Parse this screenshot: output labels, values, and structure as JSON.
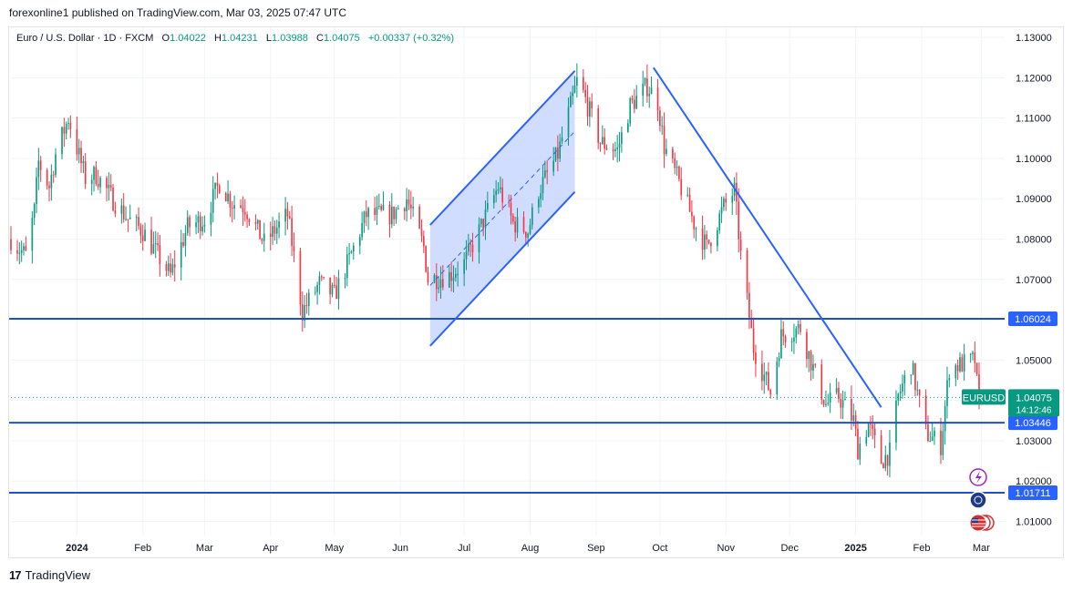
{
  "header": {
    "text": "forexonline1 published on TradingView.com, Mar 03, 2025 07:47 UTC"
  },
  "legend": {
    "symbol": "Euro / U.S. Dollar · 1D · FXCM",
    "open_label": "O",
    "open": "1.04022",
    "high_label": "H",
    "high": "1.04231",
    "low_label": "L",
    "low": "1.03988",
    "close_label": "C",
    "close": "1.04075",
    "change": "+0.00337 (+0.32%)"
  },
  "footer": {
    "brand": "TradingView",
    "logo": "tradingview-logo-icon"
  },
  "colors": {
    "up": "#089981",
    "down": "#f23645",
    "drawing": "#2962ff",
    "hline": "#1e50c8",
    "channel_fill": "#c9d7ff",
    "price_tag": "#2962ff",
    "grid": "#f0f3fa"
  },
  "chart_data": {
    "type": "candlestick",
    "symbol": "EURUSD",
    "interval": "1D",
    "grid": true,
    "y_axis": {
      "side": "right",
      "ticks": [
        "1.13000",
        "1.12000",
        "1.11000",
        "1.10000",
        "1.09000",
        "1.08000",
        "1.07000",
        "1.06000",
        "1.05000",
        "1.04000",
        "1.03000",
        "1.02000",
        "1.01000"
      ],
      "range": [
        1.0065,
        1.1325
      ]
    },
    "x_axis": {
      "range": [
        "2023-12-01",
        "2025-03-12"
      ],
      "ticks": [
        {
          "label": "2024",
          "date": "2024-01-01",
          "bold": true
        },
        {
          "label": "Feb",
          "date": "2024-02-01"
        },
        {
          "label": "Mar",
          "date": "2024-03-01"
        },
        {
          "label": "Apr",
          "date": "2024-04-01"
        },
        {
          "label": "May",
          "date": "2024-05-01"
        },
        {
          "label": "Jun",
          "date": "2024-06-01"
        },
        {
          "label": "Jul",
          "date": "2024-07-01"
        },
        {
          "label": "Aug",
          "date": "2024-08-01"
        },
        {
          "label": "Sep",
          "date": "2024-09-01"
        },
        {
          "label": "Oct",
          "date": "2024-10-01"
        },
        {
          "label": "Nov",
          "date": "2024-11-01"
        },
        {
          "label": "Dec",
          "date": "2024-12-01"
        },
        {
          "label": "2025",
          "date": "2025-01-01",
          "bold": true
        },
        {
          "label": "Feb",
          "date": "2025-02-01"
        },
        {
          "label": "Mar",
          "date": "2025-03-01"
        }
      ]
    },
    "price_path": [
      [
        "2023-12-01",
        1.08
      ],
      [
        "2023-12-04",
        1.078
      ],
      [
        "2023-12-08",
        1.076
      ],
      [
        "2023-12-12",
        1.087
      ],
      [
        "2023-12-14",
        1.099
      ],
      [
        "2023-12-19",
        1.093
      ],
      [
        "2023-12-22",
        1.101
      ],
      [
        "2023-12-28",
        1.11
      ],
      [
        "2024-01-05",
        1.095
      ],
      [
        "2024-01-10",
        1.096
      ],
      [
        "2024-01-19",
        1.089
      ],
      [
        "2024-01-25",
        1.085
      ],
      [
        "2024-02-01",
        1.082
      ],
      [
        "2024-02-08",
        1.076
      ],
      [
        "2024-02-14",
        1.071
      ],
      [
        "2024-02-22",
        1.083
      ],
      [
        "2024-03-01",
        1.085
      ],
      [
        "2024-03-08",
        1.094
      ],
      [
        "2024-03-14",
        1.089
      ],
      [
        "2024-03-20",
        1.088
      ],
      [
        "2024-03-29",
        1.079
      ],
      [
        "2024-04-09",
        1.086
      ],
      [
        "2024-04-16",
        1.062
      ],
      [
        "2024-04-24",
        1.069
      ],
      [
        "2024-05-01",
        1.066
      ],
      [
        "2024-05-08",
        1.075
      ],
      [
        "2024-05-16",
        1.086
      ],
      [
        "2024-05-28",
        1.086
      ],
      [
        "2024-06-04",
        1.09
      ],
      [
        "2024-06-12",
        1.078
      ],
      [
        "2024-06-14",
        1.07
      ],
      [
        "2024-06-24",
        1.071
      ],
      [
        "2024-07-01",
        1.074
      ],
      [
        "2024-07-08",
        1.082
      ],
      [
        "2024-07-17",
        1.093
      ],
      [
        "2024-07-24",
        1.084
      ],
      [
        "2024-07-31",
        1.082
      ],
      [
        "2024-08-05",
        1.092
      ],
      [
        "2024-08-14",
        1.101
      ],
      [
        "2024-08-23",
        1.119
      ],
      [
        "2024-08-26",
        1.116
      ],
      [
        "2024-09-03",
        1.104
      ],
      [
        "2024-09-11",
        1.102
      ],
      [
        "2024-09-17",
        1.113
      ],
      [
        "2024-09-25",
        1.118
      ],
      [
        "2024-09-30",
        1.114
      ],
      [
        "2024-10-03",
        1.103
      ],
      [
        "2024-10-10",
        1.094
      ],
      [
        "2024-10-17",
        1.084
      ],
      [
        "2024-10-23",
        1.078
      ],
      [
        "2024-10-31",
        1.088
      ],
      [
        "2024-11-05",
        1.092
      ],
      [
        "2024-11-08",
        1.076
      ],
      [
        "2024-11-14",
        1.053
      ],
      [
        "2024-11-22",
        1.042
      ],
      [
        "2024-11-27",
        1.056
      ],
      [
        "2024-12-06",
        1.058
      ],
      [
        "2024-12-12",
        1.048
      ],
      [
        "2024-12-18",
        1.039
      ],
      [
        "2024-12-24",
        1.041
      ],
      [
        "2024-12-31",
        1.035
      ],
      [
        "2025-01-02",
        1.028
      ],
      [
        "2025-01-07",
        1.034
      ],
      [
        "2025-01-13",
        1.025
      ],
      [
        "2025-01-17",
        1.027
      ],
      [
        "2025-01-21",
        1.041
      ],
      [
        "2025-01-27",
        1.049
      ],
      [
        "2025-02-03",
        1.032
      ],
      [
        "2025-02-10",
        1.029
      ],
      [
        "2025-02-14",
        1.048
      ],
      [
        "2025-02-20",
        1.049
      ],
      [
        "2025-02-26",
        1.05
      ],
      [
        "2025-02-28",
        1.038
      ],
      [
        "2025-03-03",
        1.0408
      ]
    ],
    "horizontal_lines": [
      1.06024,
      1.03446,
      1.01711
    ],
    "price_labels": [
      {
        "value": 1.06024,
        "text": "1.06024"
      },
      {
        "value": 1.03446,
        "text": "1.03446"
      },
      {
        "value": 1.01711,
        "text": "1.01711"
      }
    ],
    "current_price": {
      "value": 1.04075,
      "symbol_text": "EURUSD",
      "price_text": "1.04075",
      "countdown": "14:12:46"
    },
    "drawings": {
      "channel": {
        "upper": [
          [
            "2024-06-15",
            1.0835
          ],
          [
            "2024-08-22",
            1.1217
          ]
        ],
        "lower": [
          [
            "2024-06-15",
            1.0535
          ],
          [
            "2024-08-22",
            1.0917
          ]
        ],
        "midline": [
          [
            "2024-06-15",
            1.0685
          ],
          [
            "2024-08-22",
            1.1067
          ]
        ]
      },
      "trendline": [
        [
          "2024-09-28",
          1.1225
        ],
        [
          "2025-01-13",
          1.0383
        ]
      ]
    },
    "event_icons": [
      "lightning-icon",
      "globe-icon",
      "us-flag-icon"
    ]
  }
}
